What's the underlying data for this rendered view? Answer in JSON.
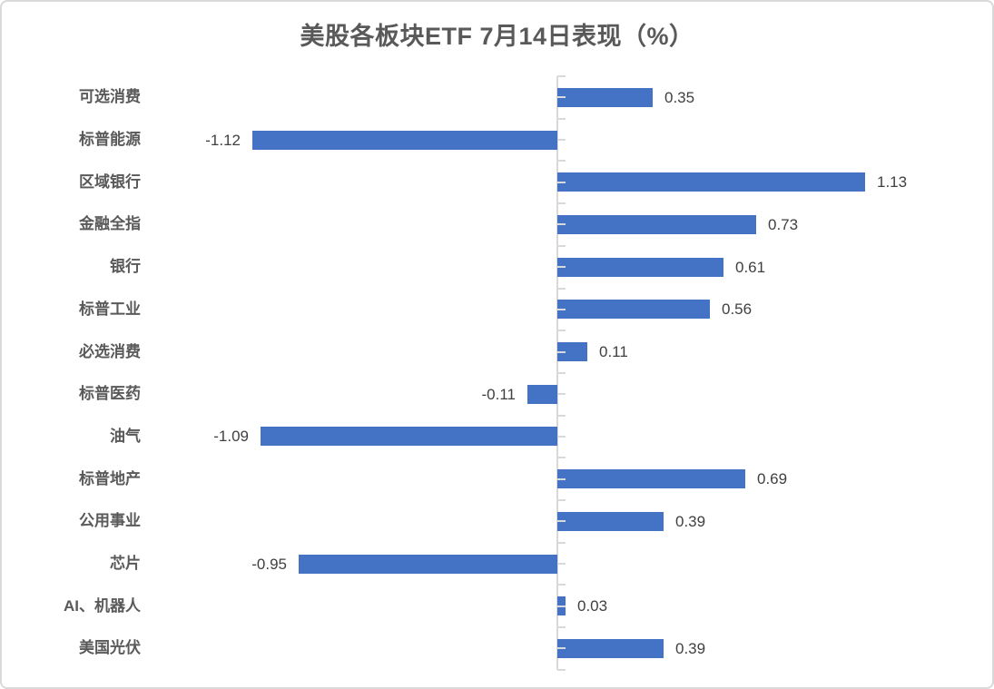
{
  "chart_data": {
    "type": "bar",
    "orientation": "horizontal",
    "title": "美股各板块ETF 7月14日表现（%）",
    "xlabel": "",
    "ylabel": "",
    "categories": [
      "可选消费",
      "标普能源",
      "区域银行",
      "金融全指",
      "银行",
      "标普工业",
      "必选消费",
      "标普医药",
      "油气",
      "标普地产",
      "公用事业",
      "芯片",
      "AI、机器人",
      "美国光伏"
    ],
    "values": [
      0.35,
      -1.12,
      1.13,
      0.73,
      0.61,
      0.56,
      0.11,
      -0.11,
      -1.09,
      0.69,
      0.39,
      -0.95,
      0.03,
      0.39
    ],
    "value_labels": [
      "0.35",
      "-1.12",
      "1.13",
      "0.73",
      "0.61",
      "0.56",
      "0.11",
      "-0.11",
      "-1.09",
      "0.69",
      "0.39",
      "-0.95",
      "0.03",
      "0.39"
    ],
    "data_labels": "outside-end",
    "grid": false,
    "legend": false,
    "xlim": [
      -1.6,
      1.6
    ],
    "colors": {
      "bar": "#4472c4",
      "axis": "#d9d9d9",
      "title": "#595959",
      "category_label": "#595959",
      "value_label": "#404040",
      "background": "#ffffff",
      "card_border": "#d9d9d9"
    }
  }
}
